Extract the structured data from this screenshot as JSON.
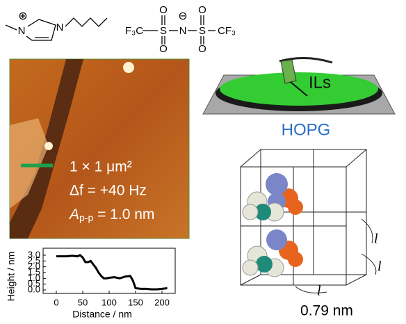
{
  "cation": {
    "n1": "N",
    "charge": "⊕",
    "n3": "N"
  },
  "anion": {
    "left": "F₃C",
    "s1": "S",
    "o1": "O",
    "o2": "O",
    "n": "N",
    "charge": "⊖",
    "s2": "S",
    "o3": "O",
    "o4": "O",
    "right": "CF₃"
  },
  "afm_image": {
    "size": "1 × 1 μm²",
    "df": "Δf = +40 Hz",
    "amp_symbol": "A",
    "amp_sub": "p-p",
    "amp_value": " = 1.0 nm"
  },
  "substrate_diagram": {
    "liquid": "ILs",
    "substrate": "HOPG"
  },
  "lattice_diagram": {
    "edge_labels": [
      "l",
      "l",
      "l"
    ],
    "spacing": "0.79 nm"
  },
  "chart_data": {
    "type": "line",
    "x_label": "Distance / nm",
    "y_label": "Height / nm",
    "color": "#000000",
    "x": [
      0,
      10,
      20,
      30,
      40,
      45,
      50,
      55,
      60,
      65,
      70,
      75,
      80,
      85,
      90,
      95,
      100,
      110,
      120,
      130,
      140,
      145,
      150,
      160,
      170,
      180,
      190,
      200,
      210
    ],
    "values": [
      2.9,
      2.9,
      2.9,
      2.95,
      2.9,
      3.0,
      2.8,
      2.4,
      2.4,
      2.5,
      2.2,
      1.9,
      1.5,
      1.2,
      1.0,
      1.0,
      1.05,
      1.1,
      1.0,
      1.15,
      1.2,
      0.8,
      0.15,
      0.1,
      0.1,
      0.05,
      0.05,
      0.1,
      0.15
    ],
    "xlim": [
      -25,
      225
    ],
    "ylim": [
      -0.3,
      3.6
    ],
    "xticks": [
      0,
      50,
      100,
      150,
      200
    ],
    "yticks": [
      {
        "value": 0,
        "label": "0.0"
      },
      0.5,
      {
        "value": 1,
        "label": "1.0"
      },
      1.5,
      {
        "value": 2,
        "label": "2.0"
      },
      2.5,
      {
        "value": 3,
        "label": "3.0"
      }
    ]
  }
}
